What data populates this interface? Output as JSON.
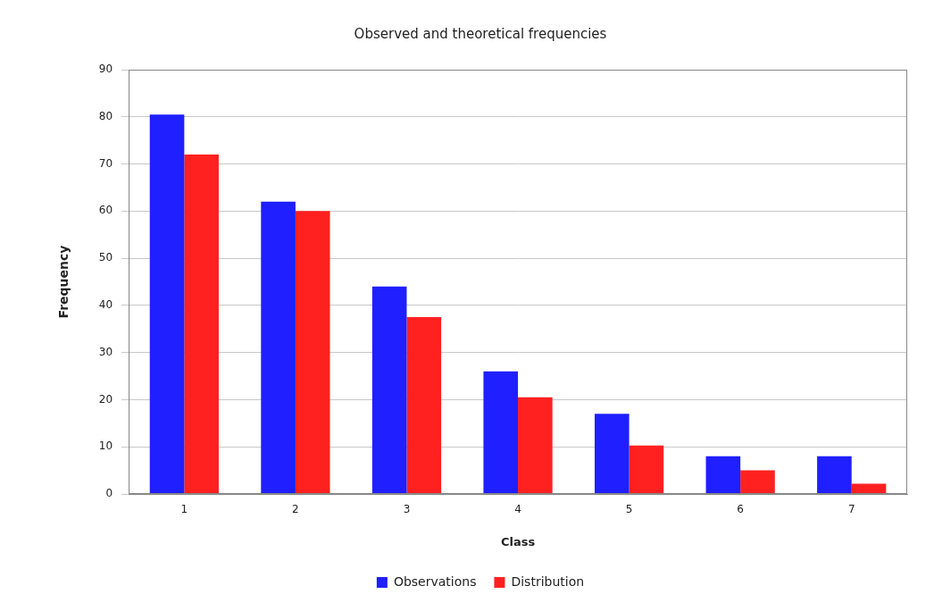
{
  "chart_data": {
    "type": "bar",
    "title": "Observed and theoretical frequencies",
    "x_label": "Class",
    "y_label": "Frequency",
    "categories": [
      "1",
      "2",
      "3",
      "4",
      "5",
      "6",
      "7"
    ],
    "series": [
      {
        "name": "Observations",
        "color": "#1f1fff",
        "values": [
          80.5,
          62,
          44,
          26,
          17,
          8,
          8
        ]
      },
      {
        "name": "Distribution",
        "color": "#ff2020",
        "values": [
          72,
          60,
          37.5,
          20.5,
          10.3,
          5,
          2.2
        ]
      }
    ],
    "ylim": [
      0,
      90
    ],
    "yticks": [
      0,
      10,
      20,
      30,
      40,
      50,
      60,
      70,
      80,
      90
    ],
    "grid": true,
    "legend": "bottom"
  }
}
